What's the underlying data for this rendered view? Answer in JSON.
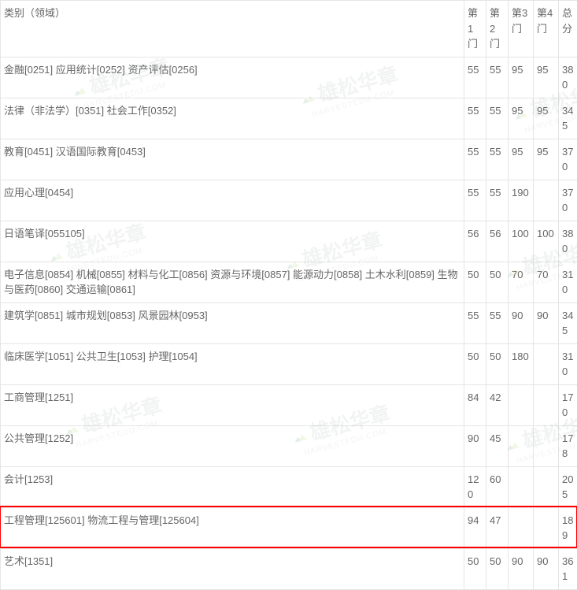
{
  "table": {
    "headers": [
      "类别（领域）",
      "第1门",
      "第2门",
      "第3门",
      "第4门",
      "总分"
    ],
    "rows": [
      {
        "category": "金融[0251] 应用统计[0252] 资产评估[0256]",
        "s1": "55",
        "s2": "55",
        "s3": "95",
        "s4": "95",
        "total": "380"
      },
      {
        "category": "法律（非法学）[0351] 社会工作[0352]",
        "s1": "55",
        "s2": "55",
        "s3": "95",
        "s4": "95",
        "total": "345"
      },
      {
        "category": "教育[0451] 汉语国际教育[0453]",
        "s1": "55",
        "s2": "55",
        "s3": "95",
        "s4": "95",
        "total": "370"
      },
      {
        "category": "应用心理[0454]",
        "s1": "55",
        "s2": "55",
        "s3": "190",
        "s4": "",
        "total": "370"
      },
      {
        "category": "日语笔译[055105]",
        "s1": "56",
        "s2": "56",
        "s3": "100",
        "s4": "100",
        "total": "380"
      },
      {
        "category": "电子信息[0854] 机械[0855] 材料与化工[0856] 资源与环境[0857] 能源动力[0858] 土木水利[0859] 生物与医药[0860] 交通运输[0861]",
        "s1": "50",
        "s2": "50",
        "s3": "70",
        "s4": "70",
        "total": "310"
      },
      {
        "category": "建筑学[0851] 城市规划[0853] 风景园林[0953]",
        "s1": "55",
        "s2": "55",
        "s3": "90",
        "s4": "90",
        "total": "345"
      },
      {
        "category": "临床医学[1051] 公共卫生[1053] 护理[1054]",
        "s1": "50",
        "s2": "50",
        "s3": "180",
        "s4": "",
        "total": "310"
      },
      {
        "category": "工商管理[1251]",
        "s1": "84",
        "s2": "42",
        "s3": "",
        "s4": "",
        "total": "170"
      },
      {
        "category": "公共管理[1252]",
        "s1": "90",
        "s2": "45",
        "s3": "",
        "s4": "",
        "total": "178"
      },
      {
        "category": "会计[1253]",
        "s1": "120",
        "s2": "60",
        "s3": "",
        "s4": "",
        "total": "205"
      },
      {
        "category": "工程管理[125601] 物流工程与管理[125604]",
        "s1": "94",
        "s2": "47",
        "s3": "",
        "s4": "",
        "total": "189"
      },
      {
        "category": "艺术[1351]",
        "s1": "50",
        "s2": "50",
        "s3": "90",
        "s4": "90",
        "total": "361"
      }
    ],
    "highlight_index": 11
  },
  "watermark": {
    "text_cn": "雄松华章",
    "text_en": "HARVESTEDU.COM",
    "logo_colors": [
      "#2e8b57",
      "#9acd32"
    ]
  },
  "styling": {
    "border_color": "#e5e5e5",
    "text_color": "#666666",
    "bg_color": "#ffffff",
    "highlight_border": "#ff0000",
    "font_size": 13,
    "wm_opacity": 0.12
  }
}
